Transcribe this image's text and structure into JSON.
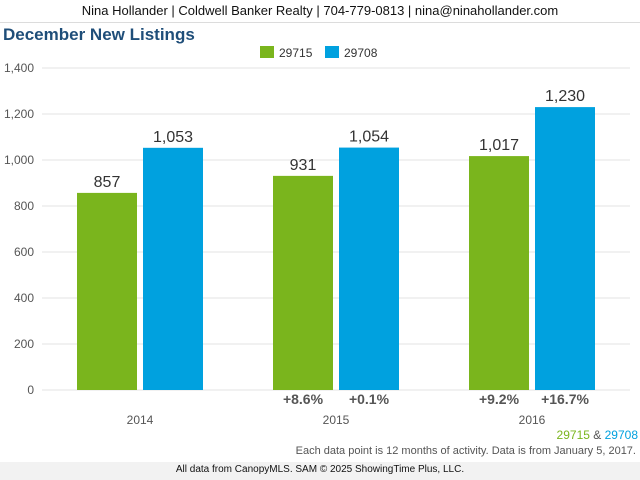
{
  "header": {
    "contact": "Nina Hollander | Coldwell Banker Realty | 704-779-0813 | nina@ninahollander.com"
  },
  "colors": {
    "s1": "#7ab51d",
    "s2": "#00a1df",
    "title": "#1f4e79"
  },
  "chart_data": {
    "type": "bar",
    "title": "December New Listings",
    "categories": [
      "2014",
      "2015",
      "2016"
    ],
    "series": [
      {
        "name": "29715",
        "values": [
          857,
          931,
          1017
        ],
        "labels": [
          "857",
          "931",
          "1,017"
        ],
        "changes": [
          null,
          "+8.6%",
          "+9.2%"
        ]
      },
      {
        "name": "29708",
        "values": [
          1053,
          1054,
          1230
        ],
        "labels": [
          "1,053",
          "1,054",
          "1,230"
        ],
        "changes": [
          null,
          "+0.1%",
          "+16.7%"
        ]
      }
    ],
    "ylim": [
      0,
      1400
    ],
    "yticks": [
      "0",
      "200",
      "400",
      "600",
      "800",
      "1,000",
      "1,200",
      "1,400"
    ],
    "grid": true,
    "legend": "top-center"
  },
  "zip_legend": {
    "a": "29715",
    "sep": "&",
    "b": "29708"
  },
  "note": "Each data point is 12 months of activity. Data is from January 5, 2017.",
  "footer": "All data from CanopyMLS. SAM © 2025 ShowingTime Plus, LLC."
}
